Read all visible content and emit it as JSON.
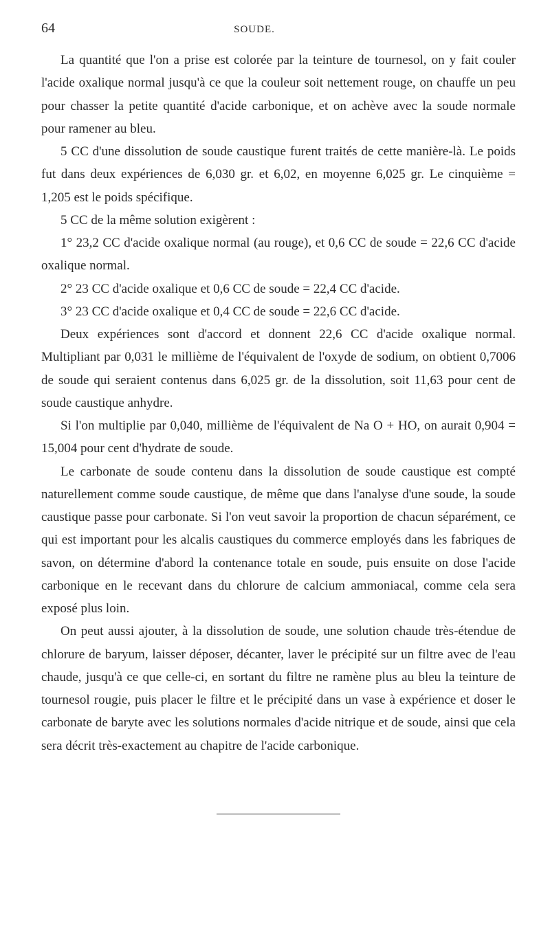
{
  "page_number": "64",
  "header_title": "SOUDE.",
  "p1": "La quantité que l'on a prise est colorée par la teinture de tournesol, on y fait couler l'acide oxalique normal jusqu'à ce que la couleur soit nettement rouge, on chauffe un peu pour chasser la petite quantité d'acide carbonique, et on achève avec la soude normale pour ramener au bleu.",
  "p2": "5 CC d'une dissolution de soude caustique furent traités de cette manière-là. Le poids fut dans deux expériences de 6,030 gr. et 6,02, en moyenne 6,025 gr. Le cinquième = 1,205 est le poids spécifique.",
  "p3": "5 CC de la même solution exigèrent :",
  "p4": "1° 23,2 CC d'acide oxalique normal (au rouge), et 0,6 CC de soude = 22,6 CC d'acide oxalique normal.",
  "p5": "2° 23 CC d'acide oxalique et 0,6 CC de soude = 22,4 CC d'acide.",
  "p6": "3° 23 CC d'acide oxalique et 0,4 CC de soude = 22,6 CC d'acide.",
  "p7": "Deux expériences sont d'accord et donnent 22,6 CC d'acide oxalique normal. Multipliant par 0,031 le millième de l'équivalent de l'oxyde de sodium, on obtient 0,7006 de soude qui seraient contenus dans 6,025 gr. de la dissolution, soit 11,63 pour cent de soude caustique anhydre.",
  "p8": "Si l'on multiplie par 0,040, millième de l'équivalent de Na O + HO, on aurait 0,904 = 15,004 pour cent d'hydrate de soude.",
  "p9": "Le carbonate de soude contenu dans la dissolution de soude caustique est compté naturellement comme soude caustique, de même que dans l'analyse d'une soude, la soude caustique passe pour carbonate. Si l'on veut savoir la proportion de chacun séparément, ce qui est important pour les alcalis caustiques du commerce employés dans les fabriques de savon, on détermine d'abord la contenance totale en soude, puis ensuite on dose l'acide carbonique en le recevant dans du chlorure de calcium ammoniacal, comme cela sera exposé plus loin.",
  "p10": "On peut aussi ajouter, à la dissolution de soude, une solution chaude très-étendue de chlorure de baryum, laisser déposer, décanter, laver le précipité sur un filtre avec de l'eau chaude, jusqu'à ce que celle-ci, en sortant du filtre ne ramène plus au bleu la teinture de tournesol rougie, puis placer le filtre et le précipité dans un vase à expérience et doser le carbonate de baryte avec les solutions normales d'acide nitrique et de soude, ainsi que cela sera décrit très-exactement au chapitre de l'acide carbonique."
}
